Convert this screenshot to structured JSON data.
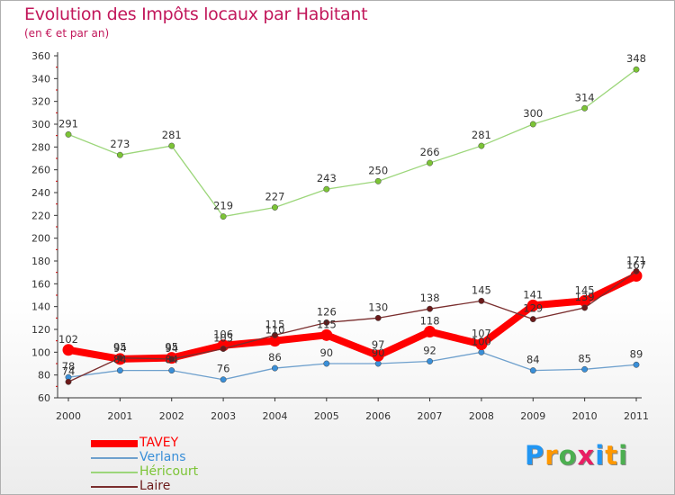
{
  "title": "Evolution des Impôts locaux par Habitant",
  "subtitle": "(en € et par an)",
  "logo": {
    "text": "Proxiti",
    "letter_colors": [
      "#2196f3",
      "#ff9800",
      "#4caf50",
      "#e91e63",
      "#2196f3",
      "#ff9800",
      "#4caf50"
    ]
  },
  "chart_data": {
    "type": "line",
    "x": [
      "2000",
      "2001",
      "2002",
      "2003",
      "2004",
      "2005",
      "2006",
      "2007",
      "2008",
      "2009",
      "2010",
      "2011"
    ],
    "ylim": [
      60,
      360
    ],
    "yticks": [
      60,
      80,
      100,
      120,
      140,
      160,
      180,
      200,
      220,
      240,
      260,
      280,
      300,
      320,
      340,
      360
    ],
    "grid": false,
    "legend": "bottom-left",
    "series": [
      {
        "name": "TAVEY",
        "color": "#ff0000",
        "point_color": "#ff0000",
        "values": [
          102,
          94,
          95,
          106,
          110,
          115,
          97,
          118,
          107,
          141,
          145,
          167
        ],
        "labels": [
          "102",
          "94",
          "95",
          "106",
          "110",
          "115",
          "97",
          "118",
          "107",
          "141",
          "145",
          "167"
        ]
      },
      {
        "name": "Verlans",
        "color": "#6ea0cd",
        "point_color": "#3a8fd8",
        "values": [
          78,
          84,
          84,
          76,
          86,
          90,
          90,
          92,
          100,
          84,
          85,
          89
        ],
        "labels": [
          "78",
          "84",
          "84",
          "76",
          "86",
          "90",
          "90",
          "92",
          "100",
          "84",
          "85",
          "89"
        ]
      },
      {
        "name": "Héricourt",
        "color": "#9cd67a",
        "point_color": "#7cc436",
        "values": [
          291,
          273,
          281,
          219,
          227,
          243,
          250,
          266,
          281,
          300,
          314,
          348
        ],
        "labels": [
          "291",
          "273",
          "281",
          "219",
          "227",
          "243",
          "250",
          "266",
          "281",
          "300",
          "314",
          "348"
        ]
      },
      {
        "name": "Laire",
        "color": "#7a2e2e",
        "point_color": "#6b1a1a",
        "values": [
          74,
          95,
          94,
          103,
          115,
          126,
          130,
          138,
          145,
          129,
          139,
          171
        ],
        "labels": [
          "74",
          "95",
          "94",
          "103",
          "115",
          "126",
          "130",
          "138",
          "145",
          "129",
          "139",
          "171"
        ]
      }
    ]
  }
}
